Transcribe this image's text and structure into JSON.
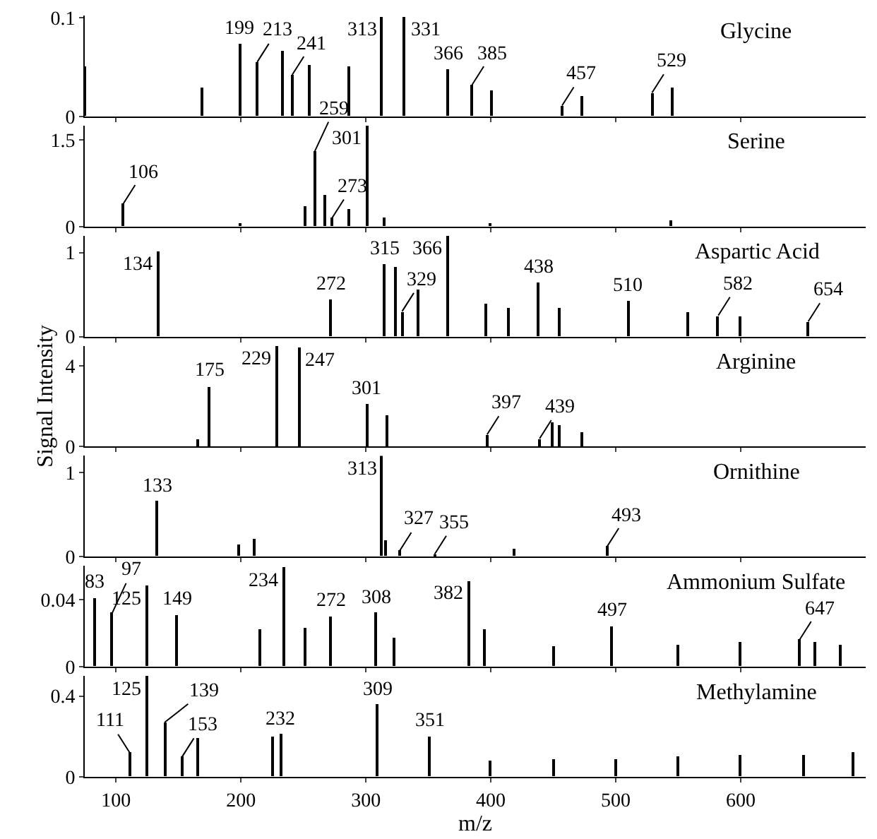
{
  "chart_data": [
    {
      "type": "bar",
      "title": "Glycine",
      "x": [
        75,
        169,
        199,
        213,
        233,
        241,
        255,
        286,
        313,
        331,
        366,
        385,
        401,
        457,
        473,
        529,
        545
      ],
      "values": [
        0.05,
        0.029,
        0.074,
        0.055,
        0.067,
        0.042,
        0.052,
        0.05,
        0.1,
        0.1,
        0.048,
        0.032,
        0.026,
        0.011,
        0.02,
        0.024,
        0.029
      ],
      "color": "#000000",
      "xlim": [
        75,
        700
      ],
      "xticks": [
        100,
        200,
        300,
        400,
        500,
        600
      ],
      "ylim": [
        0,
        0.102
      ],
      "yticks": [
        0,
        0.1
      ],
      "tick_labels": "y",
      "annotations": [
        {
          "text": "199",
          "x": 199,
          "y": 0.074
        },
        {
          "text": "213",
          "x": 213,
          "y": 0.055
        },
        {
          "text": "241",
          "x": 241,
          "y": 0.042
        },
        {
          "text": "313",
          "x": 313,
          "y": 0.1
        },
        {
          "text": "331",
          "x": 331,
          "y": 0.1
        },
        {
          "text": "366",
          "x": 366,
          "y": 0.048
        },
        {
          "text": "385",
          "x": 385,
          "y": 0.032
        },
        {
          "text": "457",
          "x": 457,
          "y": 0.011
        },
        {
          "text": "529",
          "x": 529,
          "y": 0.024
        }
      ]
    },
    {
      "type": "bar",
      "title": "Serine",
      "x": [
        106,
        200,
        251,
        259,
        267,
        273,
        286,
        301,
        315,
        400,
        544
      ],
      "values": [
        0.4,
        0.05,
        0.35,
        1.3,
        0.55,
        0.15,
        0.3,
        1.75,
        0.15,
        0.05,
        0.1
      ],
      "color": "#000000",
      "xlim": [
        75,
        700
      ],
      "xticks": [
        100,
        200,
        300,
        400,
        500,
        600
      ],
      "ylim": [
        0,
        1.75
      ],
      "yticks": [
        0,
        1.5
      ],
      "tick_labels": "y",
      "annotations": [
        {
          "text": "106",
          "x": 106,
          "y": 0.4
        },
        {
          "text": "259",
          "x": 259,
          "y": 1.3
        },
        {
          "text": "273",
          "x": 273,
          "y": 0.15
        },
        {
          "text": "301",
          "x": 301,
          "y": 1.75
        }
      ]
    },
    {
      "type": "bar",
      "title": "Aspartic Acid",
      "x": [
        134,
        272,
        315,
        324,
        329,
        342,
        366,
        396,
        414,
        438,
        455,
        510,
        558,
        582,
        599,
        654
      ],
      "values": [
        1.02,
        0.44,
        0.86,
        0.83,
        0.3,
        0.56,
        1.2,
        0.39,
        0.35,
        0.64,
        0.35,
        0.42,
        0.3,
        0.25,
        0.25,
        0.18
      ],
      "color": "#000000",
      "xlim": [
        75,
        700
      ],
      "xticks": [
        100,
        200,
        300,
        400,
        500,
        600
      ],
      "ylim": [
        0,
        1.2
      ],
      "yticks": [
        0,
        1
      ],
      "tick_labels": "y",
      "annotations": [
        {
          "text": "134",
          "x": 134,
          "y": 1.02
        },
        {
          "text": "272",
          "x": 272,
          "y": 0.44
        },
        {
          "text": "315",
          "x": 315,
          "y": 0.86
        },
        {
          "text": "329",
          "x": 329,
          "y": 0.3
        },
        {
          "text": "366",
          "x": 366,
          "y": 1.2
        },
        {
          "text": "438",
          "x": 438,
          "y": 0.64
        },
        {
          "text": "510",
          "x": 510,
          "y": 0.42
        },
        {
          "text": "582",
          "x": 582,
          "y": 0.25
        },
        {
          "text": "654",
          "x": 654,
          "y": 0.18
        }
      ]
    },
    {
      "type": "bar",
      "title": "Arginine",
      "ylabel": "Signal Intensity",
      "x": [
        165,
        175,
        229,
        247,
        301,
        317,
        397,
        439,
        449,
        455,
        473
      ],
      "values": [
        0.4,
        3.0,
        5.0,
        4.9,
        2.1,
        1.6,
        0.6,
        0.4,
        1.2,
        1.1,
        0.7
      ],
      "color": "#000000",
      "xlim": [
        75,
        700
      ],
      "xticks": [
        100,
        200,
        300,
        400,
        500,
        600
      ],
      "ylim": [
        0,
        5
      ],
      "yticks": [
        0,
        4
      ],
      "tick_labels": "y",
      "annotations": [
        {
          "text": "175",
          "x": 175,
          "y": 3.0
        },
        {
          "text": "229",
          "x": 229,
          "y": 5.0
        },
        {
          "text": "247",
          "x": 247,
          "y": 4.9
        },
        {
          "text": "301",
          "x": 301,
          "y": 2.1
        },
        {
          "text": "397",
          "x": 397,
          "y": 0.6
        },
        {
          "text": "439",
          "x": 439,
          "y": 0.4
        }
      ]
    },
    {
      "type": "bar",
      "title": "Ornithine",
      "x": [
        133,
        198,
        211,
        313,
        316,
        327,
        355,
        419,
        493
      ],
      "values": [
        0.66,
        0.14,
        0.21,
        1.2,
        0.2,
        0.07,
        0.03,
        0.09,
        0.12
      ],
      "color": "#000000",
      "xlim": [
        75,
        700
      ],
      "xticks": [
        100,
        200,
        300,
        400,
        500,
        600
      ],
      "ylim": [
        0,
        1.2
      ],
      "yticks": [
        0,
        1
      ],
      "tick_labels": "y",
      "annotations": [
        {
          "text": "133",
          "x": 133,
          "y": 0.66
        },
        {
          "text": "313",
          "x": 313,
          "y": 1.2
        },
        {
          "text": "327",
          "x": 327,
          "y": 0.07
        },
        {
          "text": "355",
          "x": 355,
          "y": 0.03
        },
        {
          "text": "493",
          "x": 493,
          "y": 0.12
        }
      ]
    },
    {
      "type": "bar",
      "title": "Ammonium Sulfate",
      "x": [
        83,
        97,
        125,
        149,
        215,
        234,
        251,
        272,
        308,
        323,
        382,
        395,
        450,
        497,
        550,
        600,
        647,
        660,
        680
      ],
      "values": [
        0.041,
        0.032,
        0.048,
        0.031,
        0.022,
        0.059,
        0.023,
        0.03,
        0.032,
        0.017,
        0.051,
        0.022,
        0.012,
        0.024,
        0.013,
        0.015,
        0.016,
        0.015,
        0.013
      ],
      "color": "#000000",
      "xlim": [
        75,
        700
      ],
      "xticks": [
        100,
        200,
        300,
        400,
        500,
        600
      ],
      "ylim": [
        0,
        0.06
      ],
      "yticks": [
        0,
        0.04
      ],
      "tick_labels": "y",
      "annotations": [
        {
          "text": "83",
          "x": 83,
          "y": 0.041
        },
        {
          "text": "97",
          "x": 97,
          "y": 0.032
        },
        {
          "text": "125",
          "x": 125,
          "y": 0.048
        },
        {
          "text": "149",
          "x": 149,
          "y": 0.031
        },
        {
          "text": "234",
          "x": 234,
          "y": 0.059
        },
        {
          "text": "272",
          "x": 272,
          "y": 0.03
        },
        {
          "text": "308",
          "x": 308,
          "y": 0.032
        },
        {
          "text": "382",
          "x": 382,
          "y": 0.051
        },
        {
          "text": "497",
          "x": 497,
          "y": 0.024
        },
        {
          "text": "647",
          "x": 647,
          "y": 0.016
        }
      ]
    },
    {
      "type": "bar",
      "title": "Methylamine",
      "xlabel": "m/z",
      "x": [
        111,
        125,
        139,
        153,
        166,
        225,
        232,
        309,
        351,
        400,
        450,
        500,
        550,
        600,
        650,
        690
      ],
      "values": [
        0.12,
        0.5,
        0.27,
        0.1,
        0.19,
        0.2,
        0.21,
        0.36,
        0.2,
        0.08,
        0.09,
        0.09,
        0.1,
        0.11,
        0.11,
        0.12
      ],
      "color": "#000000",
      "xlim": [
        75,
        700
      ],
      "xticks": [
        100,
        200,
        300,
        400,
        500,
        600
      ],
      "ylim": [
        0,
        0.5
      ],
      "yticks": [
        0,
        0.4
      ],
      "annotations": [
        {
          "text": "111",
          "x": 111,
          "y": 0.12
        },
        {
          "text": "125",
          "x": 125,
          "y": 0.5
        },
        {
          "text": "139",
          "x": 139,
          "y": 0.27
        },
        {
          "text": "153",
          "x": 153,
          "y": 0.1
        },
        {
          "text": "232",
          "x": 232,
          "y": 0.21
        },
        {
          "text": "309",
          "x": 309,
          "y": 0.36
        },
        {
          "text": "351",
          "x": 351,
          "y": 0.2
        }
      ]
    }
  ]
}
